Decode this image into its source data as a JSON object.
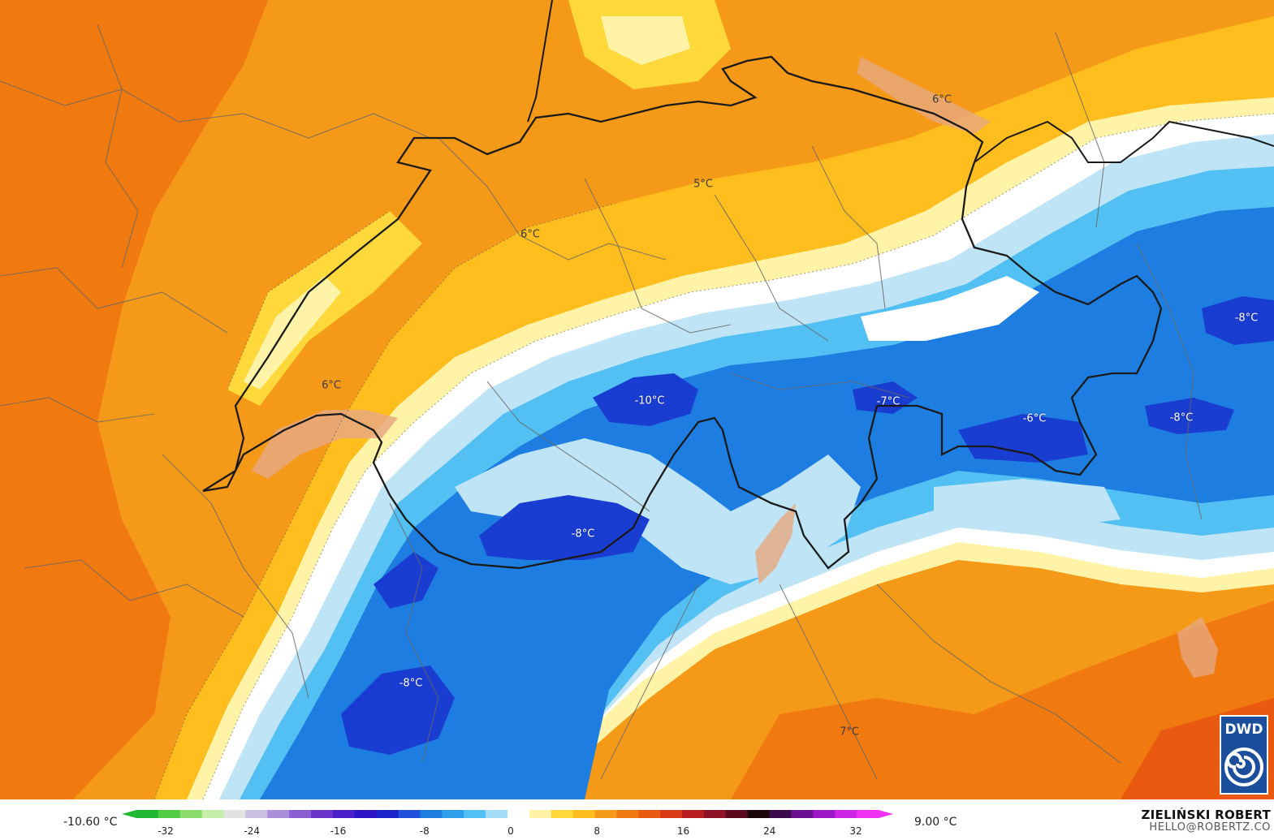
{
  "map": {
    "labels": [
      {
        "text": "6°C",
        "kind": "warm"
      },
      {
        "text": "5°C",
        "kind": "warm"
      },
      {
        "text": "6°C",
        "kind": "warm"
      },
      {
        "text": "6°C",
        "kind": "warm"
      },
      {
        "text": "-10°C",
        "kind": "cold"
      },
      {
        "text": "-7°C",
        "kind": "cold"
      },
      {
        "text": "-6°C",
        "kind": "cold"
      },
      {
        "text": "-8°C",
        "kind": "cold"
      },
      {
        "text": "-8°C",
        "kind": "cold"
      },
      {
        "text": "-8°C",
        "kind": "cold"
      },
      {
        "text": "-8°C",
        "kind": "cold"
      },
      {
        "text": "7°C",
        "kind": "warm"
      }
    ],
    "colors": {
      "warm_deep": "#f07a10",
      "warm": "#f59a18",
      "warm_light": "#ffbe1e",
      "yellow": "#ffd93b",
      "pale": "#fff3a8",
      "white": "#ffffff",
      "ice": "#bfe4f5",
      "cyan": "#3fb6ee",
      "blue": "#1e7de0",
      "deep_blue": "#1a3dd1",
      "border": "#1a1a1a",
      "admin": "#666666"
    }
  },
  "legend": {
    "min_label": "-10.60 °C",
    "max_label": "9.00 °C",
    "ticks": [
      "-32",
      "-24",
      "-16",
      "-8",
      "0",
      "8",
      "16",
      "24",
      "32"
    ],
    "colors": [
      "#22b833",
      "#52cc44",
      "#8bdc6a",
      "#c6eeaa",
      "#e2e2e2",
      "#c9bfe0",
      "#a98fd8",
      "#8a5fd2",
      "#6b35cc",
      "#4a1ec8",
      "#2a14c6",
      "#1a22c8",
      "#1e50db",
      "#1e7de0",
      "#2f9fea",
      "#52c0f2",
      "#a5dcf6",
      "#ffffff",
      "#fff3a8",
      "#ffd93b",
      "#ffbe1e",
      "#f59a18",
      "#f07a10",
      "#e95a10",
      "#d83a18",
      "#b81d22",
      "#8e1226",
      "#5a0a1c",
      "#1a0508",
      "#3a0a4a",
      "#6a1090",
      "#9c18c8",
      "#cc26e4",
      "#f030f4"
    ]
  },
  "credit": {
    "name": "ZIELIŃSKI ROBERT",
    "email": "HELLO@ROBERTZ.CO"
  },
  "logo": {
    "text": "DWD",
    "icon": "swirl-icon"
  }
}
